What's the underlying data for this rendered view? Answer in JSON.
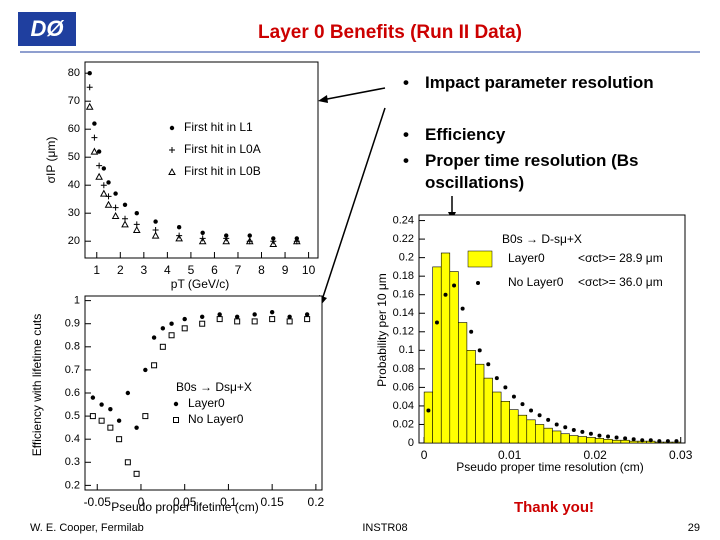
{
  "logo": "DØ",
  "title": "Layer 0 Benefits (Run II Data)",
  "bullets": [
    "Impact parameter resolution",
    "Efficiency",
    "Proper time resolution (Bs oscillations)"
  ],
  "closing": "Thank you!",
  "footer": {
    "author": "W. E. Cooper, Fermilab",
    "event": "INSTR08",
    "page": "29"
  },
  "chart_data": [
    {
      "type": "scatter",
      "xlabel": "pT (GeV/c)",
      "ylabel": "σIP (μm)",
      "xlim": [
        0.5,
        10.4
      ],
      "ylim": [
        14,
        84
      ],
      "xticks": [
        1,
        2,
        3,
        4,
        5,
        6,
        7,
        8,
        9,
        10
      ],
      "yticks": [
        20,
        30,
        40,
        50,
        60,
        70,
        80
      ],
      "series": [
        {
          "name": "First hit in L1",
          "color": "#000000",
          "marker": "dot",
          "x": [
            0.7,
            0.9,
            1.1,
            1.3,
            1.5,
            1.8,
            2.2,
            2.7,
            3.5,
            4.5,
            5.5,
            6.5,
            7.5,
            8.5,
            9.5
          ],
          "values": [
            80,
            62,
            52,
            46,
            41,
            37,
            33,
            30,
            27,
            25,
            23,
            22,
            22,
            21,
            21
          ]
        },
        {
          "name": "First hit in L0A",
          "color": "#000000",
          "marker": "cross",
          "x": [
            0.7,
            0.9,
            1.1,
            1.3,
            1.5,
            1.8,
            2.2,
            2.7,
            3.5,
            4.5,
            5.5,
            6.5,
            7.5,
            8.5,
            9.5
          ],
          "values": [
            75,
            57,
            47,
            40,
            36,
            32,
            28,
            26,
            24,
            22,
            21,
            21,
            20,
            20,
            20
          ]
        },
        {
          "name": "First hit in L0B",
          "color": "#000000",
          "marker": "triangle",
          "x": [
            0.7,
            0.9,
            1.1,
            1.3,
            1.5,
            1.8,
            2.2,
            2.7,
            3.5,
            4.5,
            5.5,
            6.5,
            7.5,
            8.5,
            9.5
          ],
          "values": [
            68,
            52,
            43,
            37,
            33,
            29,
            26,
            24,
            22,
            21,
            20,
            20,
            20,
            19,
            20
          ]
        }
      ]
    },
    {
      "type": "scatter",
      "xlabel": "Pseudo proper lifetime (cm)",
      "ylabel": "Efficiency with lifetime cuts",
      "legend_title": "B0s → Dsμ+X",
      "xlim": [
        -0.064,
        0.207
      ],
      "ylim": [
        0.18,
        1.02
      ],
      "xticks": [
        -0.05,
        0,
        0.05,
        0.1,
        0.15,
        0.2
      ],
      "yticks": [
        0.2,
        0.3,
        0.4,
        0.5,
        0.6,
        0.7,
        0.8,
        0.9,
        1
      ],
      "series": [
        {
          "name": "Layer0",
          "color": "#000000",
          "marker": "dot",
          "x": [
            -0.055,
            -0.045,
            -0.035,
            -0.025,
            -0.015,
            -0.005,
            0.005,
            0.015,
            0.025,
            0.035,
            0.05,
            0.07,
            0.09,
            0.11,
            0.13,
            0.15,
            0.17,
            0.19
          ],
          "values": [
            0.58,
            0.55,
            0.53,
            0.48,
            0.6,
            0.45,
            0.7,
            0.84,
            0.88,
            0.9,
            0.92,
            0.93,
            0.94,
            0.93,
            0.94,
            0.95,
            0.93,
            0.94
          ]
        },
        {
          "name": "No Layer0",
          "color": "#000000",
          "marker": "square",
          "x": [
            -0.055,
            -0.045,
            -0.035,
            -0.025,
            -0.015,
            -0.005,
            0.005,
            0.015,
            0.025,
            0.035,
            0.05,
            0.07,
            0.09,
            0.11,
            0.13,
            0.15,
            0.17,
            0.19
          ],
          "values": [
            0.5,
            0.48,
            0.45,
            0.4,
            0.3,
            0.25,
            0.5,
            0.72,
            0.8,
            0.85,
            0.88,
            0.9,
            0.92,
            0.91,
            0.91,
            0.92,
            0.91,
            0.92
          ]
        }
      ]
    },
    {
      "type": "histogram",
      "xlabel": "Pseudo proper time resolution (cm)",
      "ylabel": "Probability per 10 μm",
      "legend_title": "B0s → D-sμ+X",
      "legend_notes": [
        "<σct>= 28.9 μm",
        "<σct>= 36.0 μm"
      ],
      "xlim": [
        -0.0006,
        0.0305
      ],
      "ylim": [
        0,
        0.246
      ],
      "xticks": [
        0,
        0.01,
        0.02,
        0.03
      ],
      "yticks": [
        0,
        0.02,
        0.04,
        0.06,
        0.08,
        0.1,
        0.12,
        0.14,
        0.16,
        0.18,
        0.2,
        0.22,
        0.24
      ],
      "bins": [
        0,
        0.001,
        0.002,
        0.003,
        0.004,
        0.005,
        0.006,
        0.007,
        0.008,
        0.009,
        0.01,
        0.011,
        0.012,
        0.013,
        0.014,
        0.015,
        0.016,
        0.017,
        0.018,
        0.019,
        0.02,
        0.021,
        0.022,
        0.023,
        0.024,
        0.025,
        0.026,
        0.027,
        0.028,
        0.029,
        0.03
      ],
      "series": [
        {
          "name": "Layer0",
          "color": "#ffff00",
          "values": [
            0.055,
            0.19,
            0.205,
            0.185,
            0.13,
            0.1,
            0.085,
            0.07,
            0.055,
            0.045,
            0.036,
            0.03,
            0.025,
            0.02,
            0.016,
            0.013,
            0.01,
            0.008,
            0.007,
            0.006,
            0.005,
            0.004,
            0.003,
            0.003,
            0.002,
            0.002,
            0.002,
            0.001,
            0.001,
            0.001
          ]
        },
        {
          "name": "No Layer0",
          "color": "#000000",
          "values": [
            0.035,
            0.13,
            0.16,
            0.17,
            0.145,
            0.12,
            0.1,
            0.085,
            0.07,
            0.06,
            0.05,
            0.042,
            0.035,
            0.03,
            0.025,
            0.02,
            0.017,
            0.014,
            0.012,
            0.01,
            0.008,
            0.007,
            0.006,
            0.005,
            0.004,
            0.003,
            0.003,
            0.002,
            0.002,
            0.002
          ]
        }
      ]
    }
  ]
}
